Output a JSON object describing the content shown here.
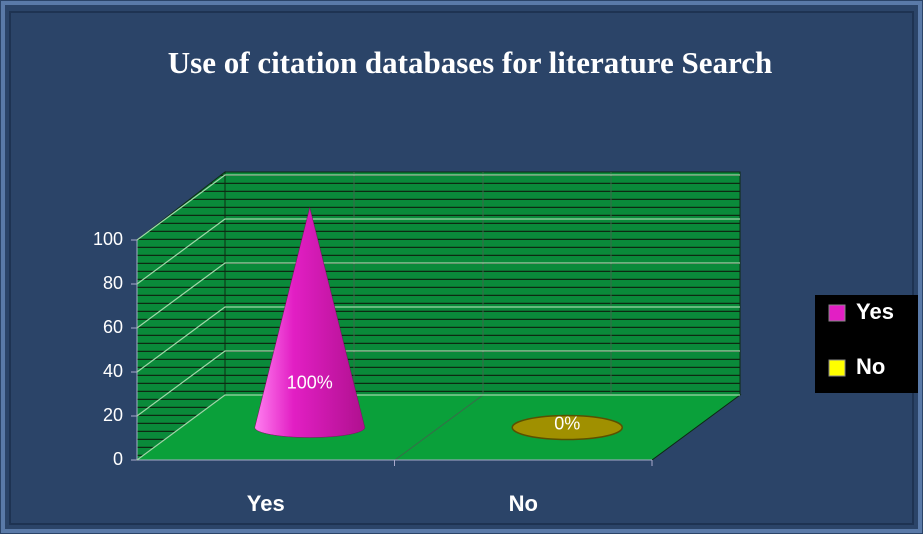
{
  "chart_data": {
    "type": "cone",
    "title": "Use of citation databases for literature Search",
    "categories": [
      "Yes",
      "No"
    ],
    "values": [
      100,
      0
    ],
    "value_labels": [
      "100%",
      "0%"
    ],
    "colors": [
      "#e21fc4",
      "#ffff00"
    ],
    "ylim": [
      0,
      100
    ],
    "yticks": [
      0,
      20,
      40,
      60,
      80,
      100
    ],
    "grid": true,
    "legend": "right"
  }
}
